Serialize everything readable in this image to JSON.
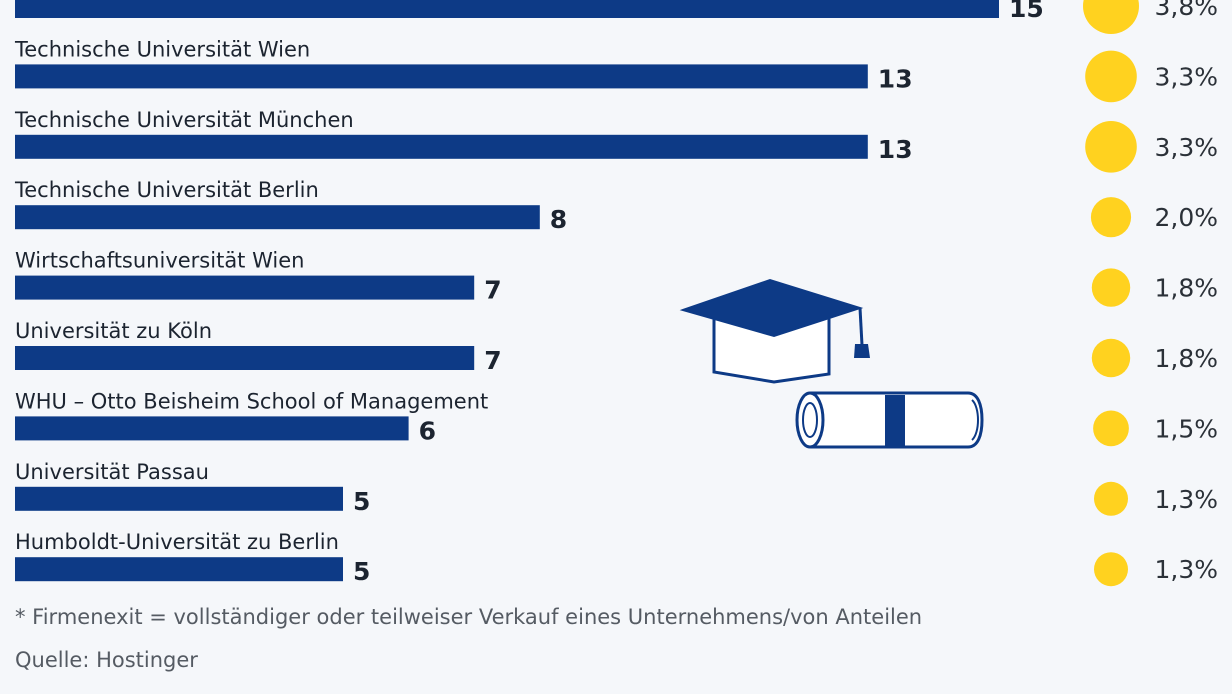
{
  "chart_data": {
    "type": "bar",
    "orientation": "horizontal",
    "categories": [
      "",
      "Technische Universität Wien",
      "Technische Universität München",
      "Technische Universität Berlin",
      "Wirtschaftsuniversität Wien",
      "Universität zu Köln",
      "WHU – Otto Beisheim School of Management",
      "Universität Passau",
      "Humboldt-Universität zu Berlin"
    ],
    "values": [
      15,
      13,
      13,
      8,
      7,
      7,
      6,
      5,
      5
    ],
    "value_labels": [
      "15",
      "13",
      "13",
      "8",
      "7",
      "7",
      "6",
      "5",
      "5"
    ],
    "shares": [
      3.8,
      3.3,
      3.3,
      2.0,
      1.8,
      1.8,
      1.5,
      1.3,
      1.3
    ],
    "share_labels": [
      "3,8%",
      "3,3%",
      "3,3%",
      "2,0%",
      "1,8%",
      "1,8%",
      "1,5%",
      "1,3%",
      "1,3%"
    ],
    "xlim": [
      0,
      15
    ],
    "grid": false,
    "bar_color": "#0d3a86",
    "bubble_color": "#ffd21f",
    "decoration_color": "#0d3a86"
  },
  "footnote": "* Firmenexit = vollständiger oder teilweiser Verkauf eines Unternehmens/von Anteilen",
  "source": "Quelle: Hostinger",
  "icons": [
    "graduation-cap-icon",
    "diploma-scroll-icon"
  ]
}
